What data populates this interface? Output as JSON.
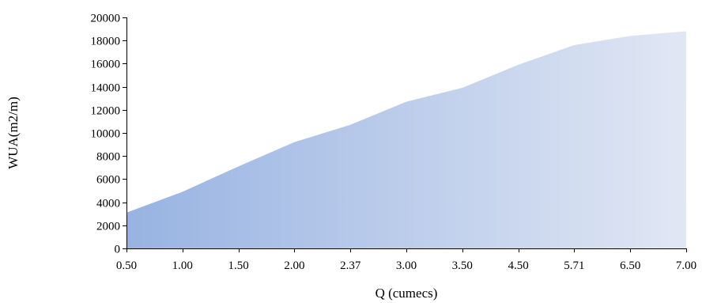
{
  "chart_data": {
    "type": "area",
    "title": "",
    "xlabel": "Q (cumecs)",
    "ylabel": "WUA(m2/m)",
    "categories": [
      "0.50",
      "1.00",
      "1.50",
      "2.00",
      "2.37",
      "3.00",
      "3.50",
      "4.50",
      "5.71",
      "6.50",
      "7.00"
    ],
    "values": [
      3100,
      4900,
      7100,
      9200,
      10700,
      12700,
      13900,
      15900,
      17600,
      18400,
      18800
    ],
    "ylim": [
      0,
      20000
    ],
    "yticks": [
      0,
      2000,
      4000,
      6000,
      8000,
      10000,
      12000,
      14000,
      16000,
      18000,
      20000
    ],
    "grid": false,
    "legend": "none",
    "colors": {
      "area_start": "#98b3e2",
      "area_end": "#e1e7f4",
      "axis": "#000000"
    }
  }
}
